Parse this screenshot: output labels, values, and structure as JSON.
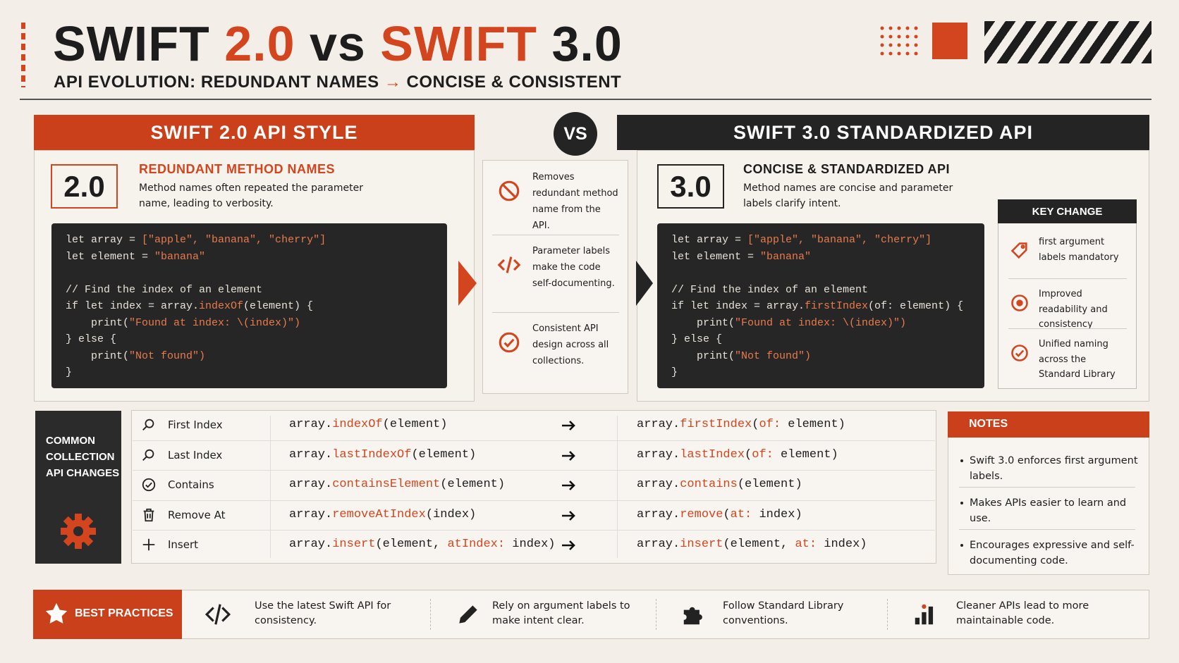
{
  "header": {
    "title": [
      "SWIFT ",
      "2.0",
      " vs ",
      "SWIFT ",
      "3.0"
    ],
    "subtitle": [
      "API EVOLUTION: REDUNDANT NAMES ",
      "→",
      " CONCISE & CONSISTENT"
    ]
  },
  "left": {
    "heading": "SWIFT 2.0 API STYLE",
    "badge": "2.0",
    "title": "REDUNDANT METHOD NAMES",
    "description": "Method names often repeated the parameter name, leading to verbosity.",
    "code": [
      [
        "let array = ",
        "[\"apple\", \"banana\", \"cherry\"]"
      ],
      [
        "let element = ",
        "\"banana\""
      ],
      [],
      [
        "// Find the index of an element"
      ],
      [
        "if let index = array.",
        "indexOf",
        "(element) {"
      ],
      [
        "    print(",
        "\"Found at index: \\(index)\")"
      ],
      [
        "} else {"
      ],
      [
        "    print(",
        "\"Not found\")"
      ],
      [
        "}"
      ]
    ]
  },
  "vs": "VS",
  "middle": [
    "Removes redundant method name from the API.",
    "Parameter labels make the code self-documenting.",
    "Consistent API design across all collections."
  ],
  "right": {
    "heading": "SWIFT 3.0 STANDARDIZED API",
    "badge": "3.0",
    "title": "CONCISE & STANDARDIZED API",
    "description": "Method names are concise and parameter labels clarify intent.",
    "code": [
      [
        "let array = ",
        "[\"apple\", \"banana\", \"cherry\"]"
      ],
      [
        "let element = ",
        "\"banana\""
      ],
      [],
      [
        "// Find the index of an element"
      ],
      [
        "if let index = array.",
        "firstIndex",
        "(of: element) {"
      ],
      [
        "    print(",
        "\"Found at index: \\(index)\")"
      ],
      [
        "} else {"
      ],
      [
        "    print(",
        "\"Not found\")"
      ],
      [
        "}"
      ]
    ]
  },
  "key_change": {
    "title": "KEY CHANGE",
    "items": [
      "first argument labels mandatory",
      "Improved readability and consistency",
      "Unified naming across the Standard Library"
    ]
  },
  "changes": {
    "label": "COMMON COLLECTION API CHANGES",
    "rows": [
      {
        "name": "First Index",
        "old": [
          "array.",
          "indexOf",
          "(element)"
        ],
        "new": [
          "array.",
          "firstIndex",
          "(",
          "of:",
          " element)"
        ]
      },
      {
        "name": "Last Index",
        "old": [
          "array.",
          "lastIndexOf",
          "(element)"
        ],
        "new": [
          "array.",
          "lastIndex",
          "(",
          "of:",
          " element)"
        ]
      },
      {
        "name": "Contains",
        "old": [
          "array.",
          "containsElement",
          "(element)"
        ],
        "new": [
          "array.",
          "contains",
          "(element)"
        ]
      },
      {
        "name": "Remove At",
        "old": [
          "array.",
          "removeAtIndex",
          "(index)"
        ],
        "new": [
          "array.",
          "remove",
          "(",
          "at:",
          " index)"
        ]
      },
      {
        "name": "Insert",
        "old": [
          "array.",
          "insert",
          "(element, ",
          "atIndex:",
          " index)"
        ],
        "new": [
          "array.",
          "insert",
          "(element, ",
          "at:",
          " index)"
        ]
      }
    ]
  },
  "notes": {
    "title": "NOTES",
    "items": [
      "Swift 3.0 enforces first argument labels.",
      "Makes APIs easier to learn and use.",
      "Encourages expressive and self-documenting code."
    ]
  },
  "best_practices": {
    "title": "BEST PRACTICES",
    "items": [
      "Use the latest Swift API for consistency.",
      "Rely on argument labels to make intent clear.",
      "Follow Standard Library conventions.",
      "Cleaner APIs lead to more maintainable code."
    ]
  }
}
